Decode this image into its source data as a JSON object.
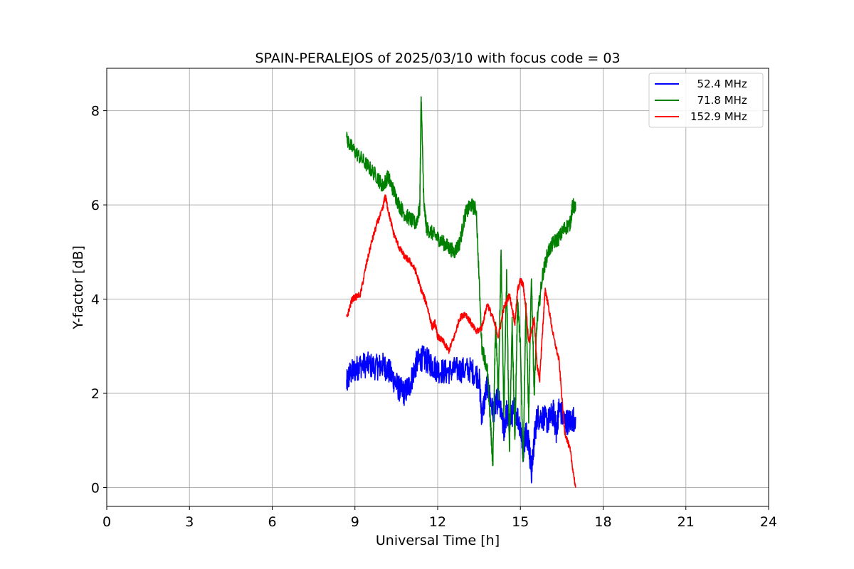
{
  "chart_data": {
    "type": "line",
    "title": "SPAIN-PERALEJOS of 2025/03/10 with focus code = 03",
    "xlabel": "Universal Time [h]",
    "ylabel": "Y-factor [dB]",
    "xlim": [
      0,
      24
    ],
    "ylim": [
      -0.4,
      8.9
    ],
    "xticks": [
      0,
      3,
      6,
      9,
      12,
      15,
      18,
      21,
      24
    ],
    "yticks": [
      0,
      2,
      4,
      6,
      8
    ],
    "grid": true,
    "legend_position": "top-right",
    "series": [
      {
        "name": "  52.4 MHz",
        "color": "#0000ff",
        "noise": 0.28,
        "x": [
          8.7,
          8.8,
          9.0,
          9.2,
          9.5,
          9.8,
          10.0,
          10.2,
          10.4,
          10.6,
          10.8,
          11.0,
          11.2,
          11.4,
          11.6,
          11.8,
          12.0,
          12.3,
          12.6,
          12.9,
          13.2,
          13.5,
          13.6,
          13.8,
          14.0,
          14.2,
          14.4,
          14.5,
          14.6,
          14.8,
          15.0,
          15.1,
          15.2,
          15.3,
          15.4,
          15.5,
          15.6,
          15.8,
          16.0,
          16.2,
          16.3,
          16.4,
          16.6,
          16.8,
          17.0
        ],
        "y": [
          2.2,
          2.4,
          2.5,
          2.6,
          2.6,
          2.55,
          2.6,
          2.5,
          2.3,
          2.1,
          2.0,
          2.2,
          2.6,
          2.75,
          2.7,
          2.6,
          2.5,
          2.45,
          2.5,
          2.5,
          2.5,
          2.35,
          1.5,
          2.2,
          1.6,
          1.9,
          1.2,
          1.6,
          1.4,
          1.7,
          1.3,
          0.8,
          1.2,
          1.0,
          0.3,
          1.0,
          1.5,
          1.5,
          1.4,
          1.6,
          1.2,
          1.7,
          1.4,
          1.4,
          1.5
        ]
      },
      {
        "name": "  71.8 MHz",
        "color": "#008000",
        "noise": 0.16,
        "x": [
          8.7,
          8.9,
          9.2,
          9.5,
          9.8,
          10.0,
          10.2,
          10.4,
          10.6,
          10.8,
          11.0,
          11.2,
          11.35,
          11.4,
          11.5,
          11.6,
          11.8,
          12.0,
          12.2,
          12.4,
          12.6,
          12.8,
          13.0,
          13.2,
          13.4,
          13.6,
          13.8,
          13.9,
          14.0,
          14.1,
          14.2,
          14.3,
          14.4,
          14.5,
          14.6,
          14.7,
          14.8,
          14.9,
          15.0,
          15.1,
          15.2,
          15.3,
          15.4,
          15.5,
          15.6,
          15.8,
          16.0,
          16.2,
          16.4,
          16.6,
          16.8,
          16.9,
          17.0
        ],
        "y": [
          7.4,
          7.2,
          7.0,
          6.8,
          6.6,
          6.4,
          6.6,
          6.3,
          6.0,
          5.8,
          5.7,
          5.6,
          5.9,
          8.3,
          6.0,
          5.5,
          5.4,
          5.3,
          5.2,
          5.1,
          5.0,
          5.2,
          5.8,
          6.0,
          5.9,
          3.0,
          2.5,
          1.5,
          0.5,
          3.5,
          2.0,
          5.0,
          1.5,
          4.5,
          0.8,
          3.5,
          1.0,
          4.0,
          3.0,
          0.5,
          4.0,
          1.5,
          4.5,
          2.0,
          3.5,
          4.5,
          5.0,
          5.2,
          5.3,
          5.5,
          5.6,
          6.0,
          5.9
        ]
      },
      {
        "name": "152.9 MHz",
        "color": "#ff0000",
        "noise": 0.07,
        "x": [
          8.7,
          8.9,
          9.2,
          9.4,
          9.6,
          9.8,
          10.0,
          10.1,
          10.2,
          10.4,
          10.6,
          10.8,
          11.0,
          11.2,
          11.4,
          11.6,
          11.8,
          11.9,
          12.0,
          12.2,
          12.4,
          12.6,
          12.8,
          13.0,
          13.2,
          13.4,
          13.6,
          13.8,
          14.0,
          14.2,
          14.4,
          14.6,
          14.8,
          14.9,
          15.0,
          15.1,
          15.2,
          15.3,
          15.4,
          15.5,
          15.6,
          15.7,
          15.8,
          15.9,
          16.0,
          16.2,
          16.4,
          16.6,
          16.8,
          17.0
        ],
        "y": [
          3.6,
          4.0,
          4.1,
          4.7,
          5.2,
          5.6,
          5.9,
          6.2,
          5.9,
          5.4,
          5.1,
          4.9,
          4.8,
          4.6,
          4.2,
          3.9,
          3.4,
          3.5,
          3.2,
          3.1,
          2.9,
          3.2,
          3.6,
          3.7,
          3.5,
          3.3,
          3.4,
          3.9,
          3.6,
          3.2,
          3.8,
          4.1,
          3.5,
          4.2,
          4.4,
          4.3,
          3.8,
          3.1,
          3.3,
          3.6,
          2.6,
          2.3,
          3.3,
          4.2,
          3.9,
          3.2,
          2.7,
          1.2,
          0.8,
          0.0
        ]
      }
    ]
  }
}
